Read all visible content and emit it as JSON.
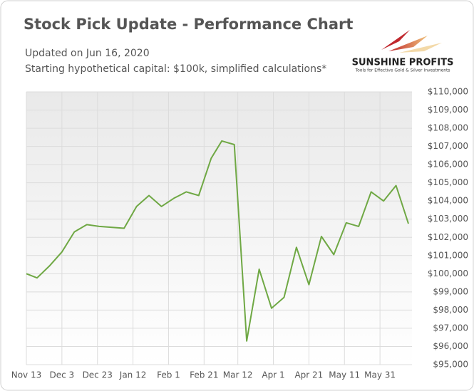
{
  "chart_data": {
    "type": "line",
    "title": "Stock Pick Update - Performance Chart",
    "subtitle": [
      "Updated on Jun 16, 2020",
      "Starting hypothetical capital: $100k, simplified calculations*"
    ],
    "logo": {
      "name": "SUNSHINE PROFITS",
      "tagline": "Tools for Effective Gold & Silver Investments"
    },
    "x": [
      "Nov 13",
      "Nov 19",
      "Nov 26",
      "Dec 3",
      "Dec 10",
      "Dec 17",
      "Dec 24",
      "Jan 7",
      "Jan 14",
      "Jan 21",
      "Jan 28",
      "Feb 4",
      "Feb 11",
      "Feb 18",
      "Feb 25",
      "Mar 3",
      "Mar 10",
      "Mar 17",
      "Mar 24",
      "Mar 31",
      "Apr 7",
      "Apr 14",
      "Apr 21",
      "Apr 28",
      "May 5",
      "May 12",
      "May 19",
      "May 26",
      "Jun 2",
      "Jun 9",
      "Jun 16"
    ],
    "series": [
      {
        "color": "#6fa844",
        "values": [
          100000,
          99770,
          100430,
          101200,
          102300,
          102700,
          102600,
          102500,
          103700,
          104300,
          103700,
          104150,
          104500,
          104300,
          106350,
          107300,
          107100,
          96300,
          100250,
          98100,
          98700,
          101450,
          99400,
          102050,
          101050,
          102800,
          102600,
          104500,
          104000,
          104850,
          102750
        ]
      }
    ],
    "xlim": [
      "Nov 13",
      "Jun 18"
    ],
    "xticks": [
      "Nov 13",
      "Dec 3",
      "Dec 23",
      "Jan 12",
      "Feb 1",
      "Feb 21",
      "Mar 12",
      "Apr 1",
      "Apr 21",
      "May 11",
      "May 31"
    ],
    "ylim": [
      95000,
      110000
    ],
    "yticks": [
      {
        "value": 95000,
        "label": "$95,000"
      },
      {
        "value": 96000,
        "label": "$96,000"
      },
      {
        "value": 97000,
        "label": "$97,000"
      },
      {
        "value": 98000,
        "label": "$98,000"
      },
      {
        "value": 99000,
        "label": "$99,000"
      },
      {
        "value": 100000,
        "label": "$100,000"
      },
      {
        "value": 101000,
        "label": "$101,000"
      },
      {
        "value": 102000,
        "label": "$102,000"
      },
      {
        "value": 103000,
        "label": "$103,000"
      },
      {
        "value": 104000,
        "label": "$104,000"
      },
      {
        "value": 105000,
        "label": "$105,000"
      },
      {
        "value": 106000,
        "label": "$106,000"
      },
      {
        "value": 107000,
        "label": "$107,000"
      },
      {
        "value": 108000,
        "label": "$108,000"
      },
      {
        "value": 109000,
        "label": "$109,000"
      },
      {
        "value": 110000,
        "label": "$110,000"
      }
    ],
    "grid": true
  }
}
